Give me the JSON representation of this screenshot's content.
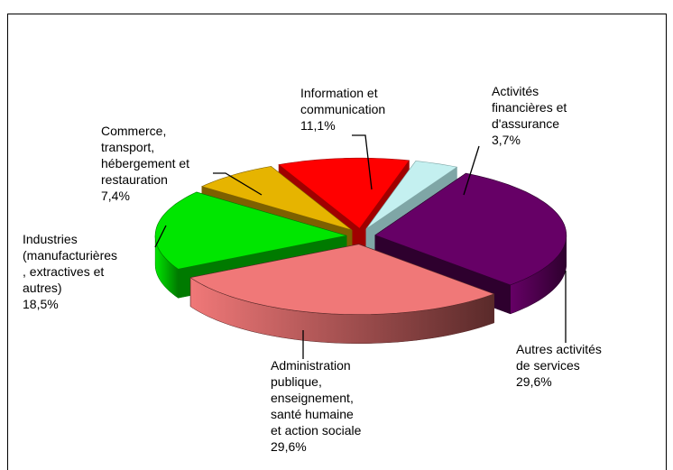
{
  "chart_data": {
    "type": "pie",
    "categories": [
      [
        "Information et",
        "communication"
      ],
      [
        "Activités",
        "financières et",
        "d'assurance"
      ],
      [
        "Autres activités",
        "de services"
      ],
      [
        "Administration",
        "publique,",
        "enseignement,",
        "santé humaine",
        "et action sociale"
      ],
      [
        "Industries",
        "(manufacturières",
        ", extractives et",
        "autres)"
      ],
      [
        "Commerce,",
        "transport,",
        "hébergement et",
        "restauration"
      ]
    ],
    "values": [
      11.1,
      3.7,
      29.6,
      29.6,
      18.5,
      7.4
    ],
    "value_labels": [
      "11,1%",
      "3,7%",
      "29,6%",
      "29,6%",
      "18,5%",
      "7,4%"
    ],
    "colors": [
      "#ff0000",
      "#c4f0f0",
      "#660066",
      "#f07878",
      "#00e600",
      "#e6b400"
    ],
    "dark_colors": [
      "#a00000",
      "#7fa6a6",
      "#2e002e",
      "#5a2a2a",
      "#007a00",
      "#7d6000"
    ]
  }
}
